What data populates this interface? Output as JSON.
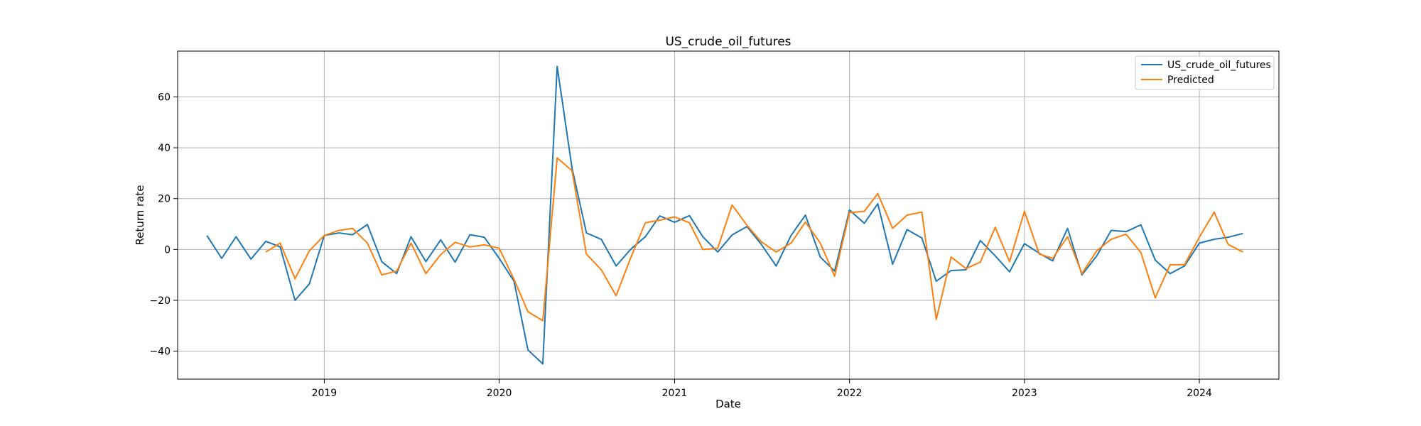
{
  "chart_data": {
    "type": "line",
    "title": "US_crude_oil_futures",
    "xlabel": "Date",
    "ylabel": "Return rate",
    "xlim": [
      "2018-03-01",
      "2024-06-15"
    ],
    "ylim": [
      -51,
      78
    ],
    "x_ticks": [
      "2019",
      "2020",
      "2021",
      "2022",
      "2023",
      "2024"
    ],
    "x_tick_dates": [
      "2019-01-01",
      "2020-01-01",
      "2021-01-01",
      "2022-01-01",
      "2023-01-01",
      "2024-01-01"
    ],
    "y_ticks": [
      -40,
      -20,
      0,
      20,
      40,
      60
    ],
    "grid": true,
    "legend_position": "top-right",
    "colors": {
      "actual": "#1f77b4",
      "predicted": "#ff7f0e"
    },
    "series": [
      {
        "name": "US_crude_oil_futures",
        "start": "2018-05",
        "values": [
          5.5,
          -3.5,
          5.0,
          -3.8,
          3.2,
          1.0,
          -20.0,
          -13.5,
          5.5,
          6.5,
          5.8,
          9.8,
          -4.8,
          -9.5,
          5.0,
          -4.8,
          3.8,
          -5.0,
          5.8,
          4.8,
          -3.5,
          -12.5,
          -39.5,
          -45.0,
          72.0,
          32.0,
          6.5,
          4.0,
          -6.5,
          0.0,
          5.0,
          13.2,
          10.7,
          13.3,
          5.0,
          -1.0,
          5.7,
          9.0,
          2.0,
          -6.5,
          5.5,
          13.5,
          -3.0,
          -8.5,
          15.5,
          10.3,
          18.0,
          -5.8,
          7.8,
          4.5,
          -12.5,
          -8.3,
          -8.0,
          3.5,
          -2.5,
          -8.8,
          2.3,
          -1.5,
          -4.5,
          8.3,
          -10.0,
          -2.5,
          7.5,
          7.0,
          9.7,
          -4.2,
          -9.5,
          -6.5,
          2.5,
          4.0,
          4.8,
          6.3
        ]
      },
      {
        "name": "Predicted",
        "start": "2018-09",
        "values": [
          -1.0,
          2.5,
          -11.5,
          -0.5,
          5.5,
          7.5,
          8.3,
          2.5,
          -10.0,
          -8.5,
          2.5,
          -9.5,
          -2.0,
          2.8,
          1.0,
          1.8,
          0.5,
          -11.8,
          -24.5,
          -28.0,
          36.0,
          31.0,
          -1.8,
          -8.0,
          -18.2,
          -3.5,
          10.5,
          11.5,
          12.8,
          10.5,
          0.0,
          0.5,
          17.5,
          9.5,
          3.0,
          -1.0,
          2.5,
          10.8,
          2.5,
          -10.5,
          14.5,
          15.0,
          22.0,
          8.3,
          13.5,
          14.7,
          -27.5,
          -3.0,
          -7.5,
          -5.0,
          8.7,
          -4.8,
          15.0,
          -1.8,
          -3.5,
          5.0,
          -9.5,
          -0.5,
          4.0,
          6.0,
          -1.2,
          -19.0,
          -6.0,
          -6.0,
          4.8,
          14.7,
          2.0,
          -1.0
        ]
      }
    ]
  }
}
